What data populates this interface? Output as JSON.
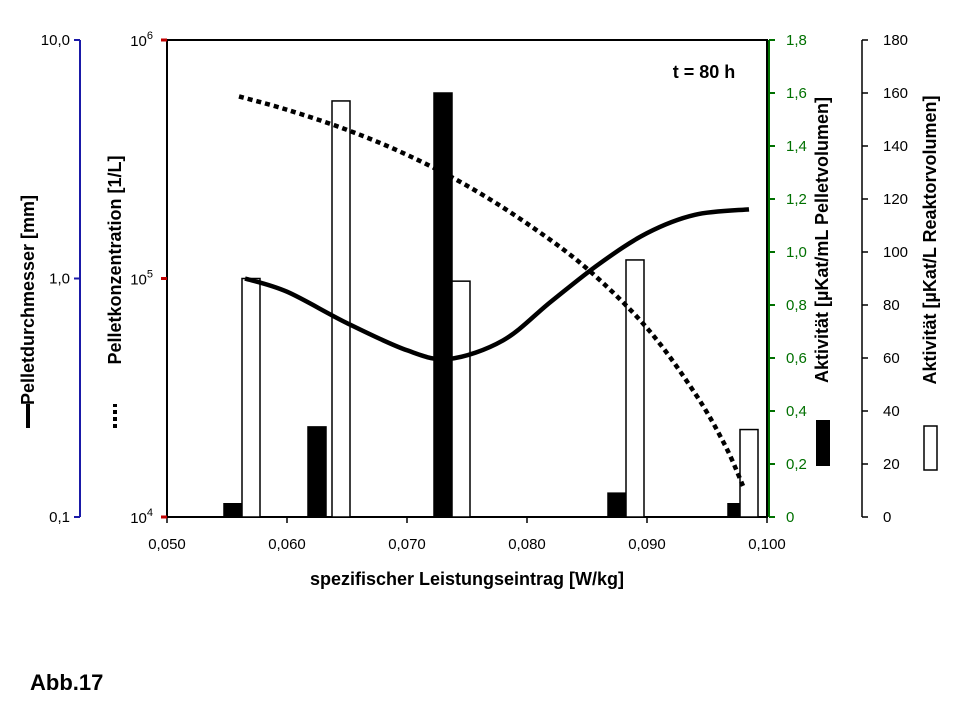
{
  "figure_label": "Abb.17",
  "chart_data": {
    "type": "bar",
    "annotation": "t = 80 h",
    "xlabel": "spezifischer Leistungseintrag [W/kg]",
    "xlim": [
      0.05,
      0.1
    ],
    "x_ticks": [
      "0,050",
      "0,060",
      "0,070",
      "0,080",
      "0,090",
      "0,100"
    ],
    "axes": {
      "pellet_diameter": {
        "label": "Pelletdurchmesser [mm]",
        "scale": "log",
        "range": [
          0.1,
          10
        ],
        "ticks": [
          "0,1",
          "1,0",
          "10,0"
        ],
        "color": "#1a1aa8"
      },
      "pellet_concentration": {
        "label": "Pelletkonzentration [1/L]",
        "scale": "log",
        "range": [
          10000,
          1000000
        ],
        "tick_base": "10",
        "tick_exponents": [
          "4",
          "5",
          "6"
        ],
        "color": "#c00000"
      },
      "activity_pellet": {
        "label": "Aktivität [µKat/mL Pelletvolumen]",
        "scale": "linear",
        "range": [
          0,
          1.8
        ],
        "ticks": [
          "0",
          "0,2",
          "0,4",
          "0,6",
          "0,8",
          "1,0",
          "1,2",
          "1,4",
          "1,6",
          "1,8"
        ],
        "color": "#007000",
        "tick_text_color": "#007000"
      },
      "activity_reactor": {
        "label": "Aktivität [µKat/L Reaktorvolumen]",
        "scale": "linear",
        "range": [
          0,
          180
        ],
        "ticks": [
          "0",
          "20",
          "40",
          "60",
          "80",
          "100",
          "120",
          "140",
          "160",
          "180"
        ],
        "color": "#000000"
      }
    },
    "series": [
      {
        "axis": "activity_pellet",
        "style": "black-bars",
        "x": [
          0.0555,
          0.0625,
          0.073,
          0.0875,
          0.0975
        ],
        "values": [
          0.05,
          0.34,
          1.6,
          0.09,
          0.05
        ]
      },
      {
        "axis": "activity_reactor",
        "style": "white-bars",
        "x": [
          0.057,
          0.0645,
          0.0745,
          0.089,
          0.0985
        ],
        "values": [
          90,
          157,
          89,
          97,
          33
        ]
      },
      {
        "axis": "pellet_diameter",
        "style": "solid-line",
        "x": [
          0.0565,
          0.06,
          0.065,
          0.07,
          0.0735,
          0.078,
          0.082,
          0.086,
          0.09,
          0.094,
          0.0985
        ],
        "values": [
          1.0,
          0.88,
          0.65,
          0.5,
          0.46,
          0.55,
          0.8,
          1.15,
          1.55,
          1.85,
          1.95
        ]
      },
      {
        "axis": "pellet_concentration",
        "style": "dotted-line",
        "x": [
          0.056,
          0.06,
          0.065,
          0.07,
          0.075,
          0.08,
          0.085,
          0.09,
          0.094,
          0.0965,
          0.098
        ],
        "values": [
          580000,
          510000,
          420000,
          330000,
          245000,
          170000,
          110000,
          62000,
          33000,
          20000,
          13500
        ]
      }
    ]
  }
}
